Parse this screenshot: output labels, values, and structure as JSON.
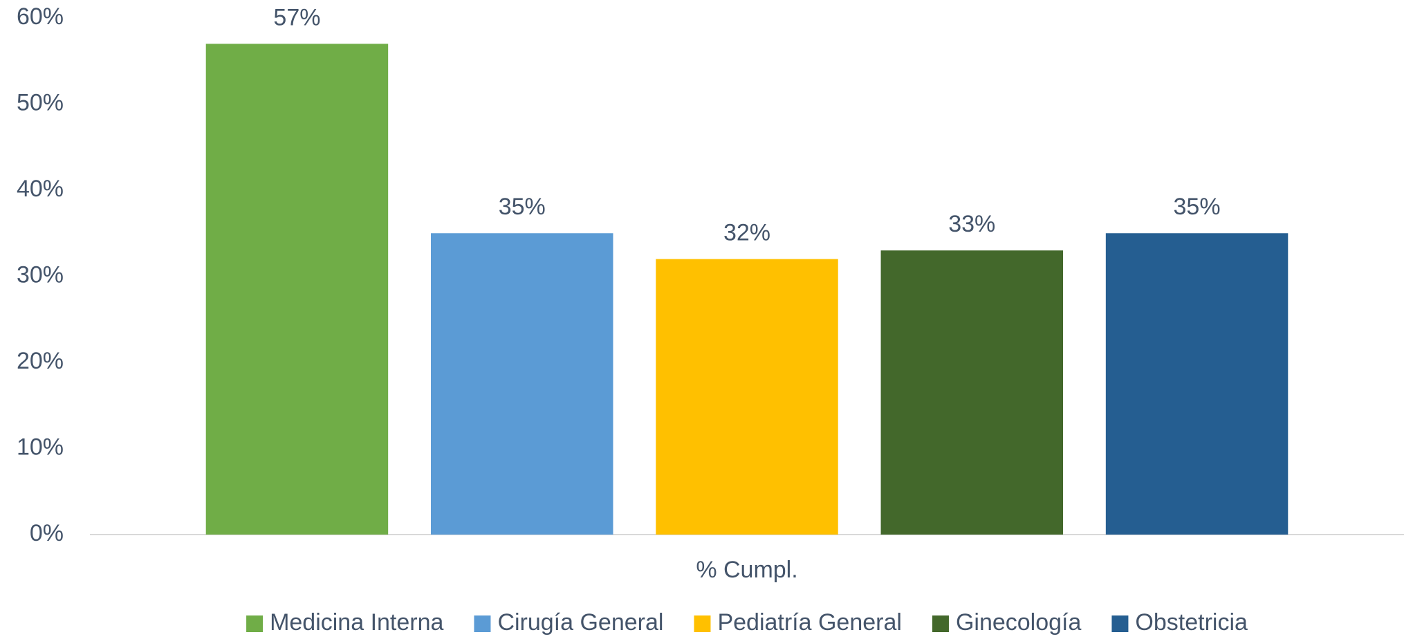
{
  "chart_data": {
    "type": "bar",
    "categories": [
      "% Cumpl."
    ],
    "series": [
      {
        "name": "Medicina Interna",
        "color": "#70ad47",
        "values": [
          57
        ],
        "value_labels": [
          "57%"
        ]
      },
      {
        "name": "Cirugía General",
        "color": "#5b9bd5",
        "values": [
          35
        ],
        "value_labels": [
          "35%"
        ]
      },
      {
        "name": "Pediatría General",
        "color": "#ffc000",
        "values": [
          32
        ],
        "value_labels": [
          "32%"
        ]
      },
      {
        "name": "Ginecología",
        "color": "#43682b",
        "values": [
          33
        ],
        "value_labels": [
          "33%"
        ]
      },
      {
        "name": "Obstetricia",
        "color": "#255e91",
        "values": [
          35
        ],
        "value_labels": [
          "35%"
        ]
      }
    ],
    "ylim": [
      0,
      60
    ],
    "yticks": [
      {
        "value": 0,
        "label": "0%"
      },
      {
        "value": 10,
        "label": "10%"
      },
      {
        "value": 20,
        "label": "20%"
      },
      {
        "value": 30,
        "label": "30%"
      },
      {
        "value": 40,
        "label": "40%"
      },
      {
        "value": 50,
        "label": "50%"
      },
      {
        "value": 60,
        "label": "60%"
      }
    ],
    "grid": false,
    "legend": "bottom"
  }
}
